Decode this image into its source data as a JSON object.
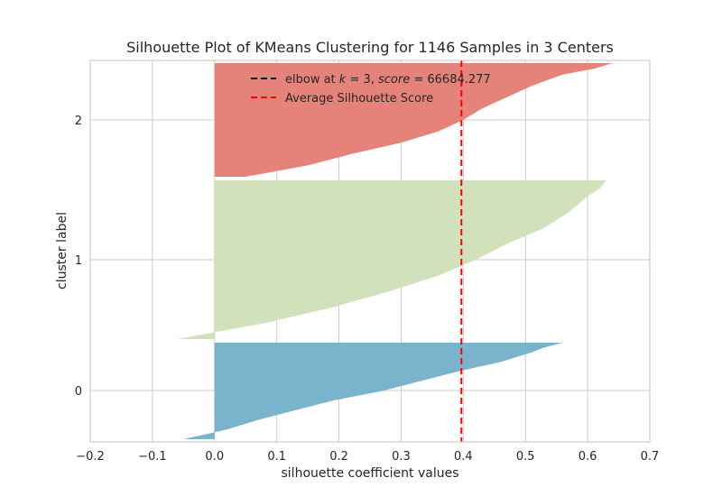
{
  "chart_data": {
    "type": "area",
    "title": "Silhouette Plot of KMeans Clustering for 1146 Samples in 3 Centers",
    "xlabel": "silhouette coefficient values",
    "ylabel": "cluster label",
    "xlim": [
      -0.2,
      0.7
    ],
    "xticks": [
      -0.2,
      -0.1,
      0.0,
      0.1,
      0.2,
      0.3,
      0.4,
      0.5,
      0.6,
      0.7
    ],
    "xtick_labels": [
      "−0.2",
      "−0.1",
      "0.0",
      "0.1",
      "0.2",
      "0.3",
      "0.4",
      "0.5",
      "0.6",
      "0.7"
    ],
    "ytick_labels": [
      "0",
      "1",
      "2"
    ],
    "grid": true,
    "legend_position": "top-center",
    "average_silhouette_score": 0.397,
    "legend": {
      "elbow_prefix": "elbow at ",
      "elbow_k": "k",
      "elbow_eq": " = 3, ",
      "elbow_score": "score",
      "elbow_value": " = 66684.277",
      "average": "Average Silhouette Score"
    },
    "clusters": [
      {
        "label": "0",
        "color": "#7ab4cc",
        "rank_fraction": [
          0.0,
          0.1,
          0.2,
          0.3,
          0.4,
          0.5,
          0.6,
          0.7,
          0.8,
          0.9,
          0.95,
          1.0
        ],
        "silhouette": [
          -0.05,
          0.02,
          0.07,
          0.13,
          0.19,
          0.27,
          0.33,
          0.39,
          0.46,
          0.51,
          0.53,
          0.56
        ]
      },
      {
        "label": "1",
        "color": "#d1e1bb",
        "rank_fraction": [
          0.0,
          0.1,
          0.2,
          0.3,
          0.4,
          0.5,
          0.6,
          0.7,
          0.8,
          0.9,
          0.95,
          1.0
        ],
        "silhouette": [
          -0.06,
          0.08,
          0.19,
          0.28,
          0.36,
          0.42,
          0.47,
          0.53,
          0.57,
          0.6,
          0.62,
          0.63
        ]
      },
      {
        "label": "2",
        "color": "#e5837b",
        "rank_fraction": [
          0.0,
          0.1,
          0.2,
          0.3,
          0.4,
          0.5,
          0.6,
          0.7,
          0.8,
          0.9,
          0.95,
          1.0
        ],
        "silhouette": [
          0.05,
          0.15,
          0.22,
          0.3,
          0.36,
          0.4,
          0.43,
          0.47,
          0.51,
          0.56,
          0.61,
          0.64
        ]
      }
    ],
    "colors": {
      "elbow_line": "#000000",
      "average_line": "#ff0000",
      "grid": "#cccccc",
      "frame": "#cccccc"
    }
  }
}
